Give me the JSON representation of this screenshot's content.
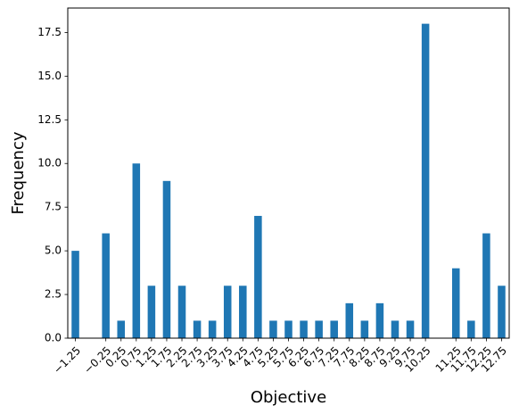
{
  "chart_data": {
    "type": "bar",
    "xlabel": "Objective",
    "ylabel": "Frequency",
    "x": [
      -1.25,
      -0.25,
      0.25,
      0.75,
      1.25,
      1.75,
      2.25,
      2.75,
      3.25,
      3.75,
      4.25,
      4.75,
      5.25,
      5.75,
      6.25,
      6.75,
      7.25,
      7.75,
      8.25,
      8.75,
      9.25,
      9.75,
      10.25,
      11.25,
      11.75,
      12.25,
      12.75
    ],
    "tick_labels": [
      "−1.25",
      "−0.25",
      "0.25",
      "0.75",
      "1.25",
      "1.75",
      "2.25",
      "2.75",
      "3.25",
      "3.75",
      "4.25",
      "4.75",
      "5.25",
      "5.75",
      "6.25",
      "6.75",
      "7.25",
      "7.75",
      "8.25",
      "8.75",
      "9.25",
      "9.75",
      "10.25",
      "11.25",
      "11.75",
      "12.25",
      "12.75"
    ],
    "values": [
      5,
      6,
      1,
      10,
      3,
      9,
      3,
      1,
      1,
      3,
      3,
      7,
      1,
      1,
      1,
      1,
      1,
      2,
      1,
      2,
      1,
      1,
      18,
      4,
      1,
      6,
      3
    ],
    "bar_width": 0.25,
    "xlim": [
      -1.5,
      13.0
    ],
    "ylim": [
      0,
      18.9
    ],
    "yticks": [
      0.0,
      2.5,
      5.0,
      7.5,
      10.0,
      12.5,
      15.0,
      17.5
    ],
    "ytick_labels": [
      "0.0",
      "2.5",
      "5.0",
      "7.5",
      "10.0",
      "12.5",
      "15.0",
      "17.5"
    ],
    "bar_color": "#1f77b4",
    "grid": false,
    "legend": "none"
  }
}
